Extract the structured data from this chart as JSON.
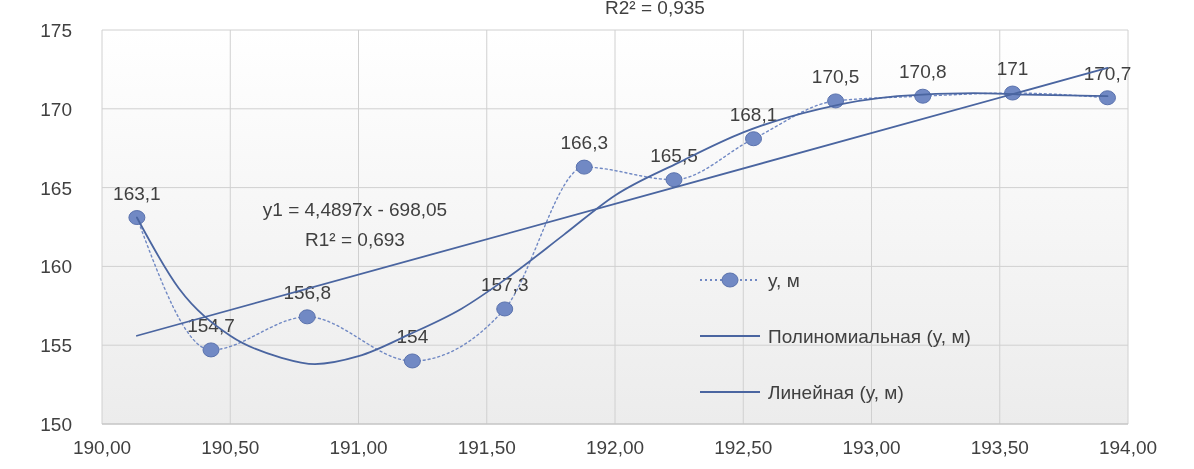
{
  "chart_data": {
    "type": "line",
    "xlim": [
      190,
      194
    ],
    "xticks": [
      {
        "value": 190,
        "label": "190,00"
      },
      {
        "value": 190.5,
        "label": "190,50"
      },
      {
        "value": 191,
        "label": "191,00"
      },
      {
        "value": 191.5,
        "label": "191,50"
      },
      {
        "value": 192,
        "label": "192,00"
      },
      {
        "value": 192.5,
        "label": "192,50"
      },
      {
        "value": 193,
        "label": "193,00"
      },
      {
        "value": 193.5,
        "label": "193,50"
      },
      {
        "value": 194,
        "label": "194,00"
      }
    ],
    "ylim": [
      150,
      175
    ],
    "yticks": [
      150,
      155,
      160,
      165,
      170,
      175
    ],
    "grid": true,
    "legend": "right",
    "annotations": [
      "R2² = 0,935",
      "y1 = 4,4897x - 698,05",
      "R1² = 0,693"
    ],
    "series": [
      {
        "name": "y, м",
        "color": "#7189c4",
        "marker": "circle",
        "line_style": "dotted",
        "x": [
          190.136,
          190.425,
          190.8,
          191.21,
          191.57,
          191.88,
          192.23,
          192.54,
          192.86,
          193.2,
          193.55,
          193.92
        ],
        "values": [
          163.1,
          154.7,
          156.8,
          154,
          157.3,
          166.3,
          165.5,
          168.1,
          170.5,
          170.8,
          171,
          170.7
        ],
        "value_labels": [
          "163,1",
          "154,7",
          "156,8",
          "154",
          "157,3",
          "166,3",
          "165,5",
          "168,1",
          "170,5",
          "170,8",
          "171",
          "170,7"
        ]
      },
      {
        "name": "Полиномиальная (y, м)",
        "color": "#4a65a0",
        "marker": "none",
        "line_style": "solid",
        "x": [
          190.136,
          190.3,
          190.5,
          190.7,
          190.83,
          191.0,
          191.2,
          191.4,
          191.6,
          191.8,
          192.0,
          192.25,
          192.5,
          192.8,
          193.1,
          193.4,
          193.6,
          193.92
        ],
        "values": [
          163.1,
          158.6,
          155.6,
          154.2,
          153.8,
          154.3,
          155.7,
          157.3,
          159.5,
          162.0,
          164.5,
          166.6,
          168.5,
          170.0,
          170.8,
          171.0,
          170.9,
          170.8
        ]
      },
      {
        "name": "Линейная (y, м)",
        "color": "#4a65a0",
        "marker": "none",
        "line_style": "solid",
        "x": [
          190.136,
          193.92
        ],
        "values": [
          155.6,
          172.59
        ]
      }
    ]
  }
}
